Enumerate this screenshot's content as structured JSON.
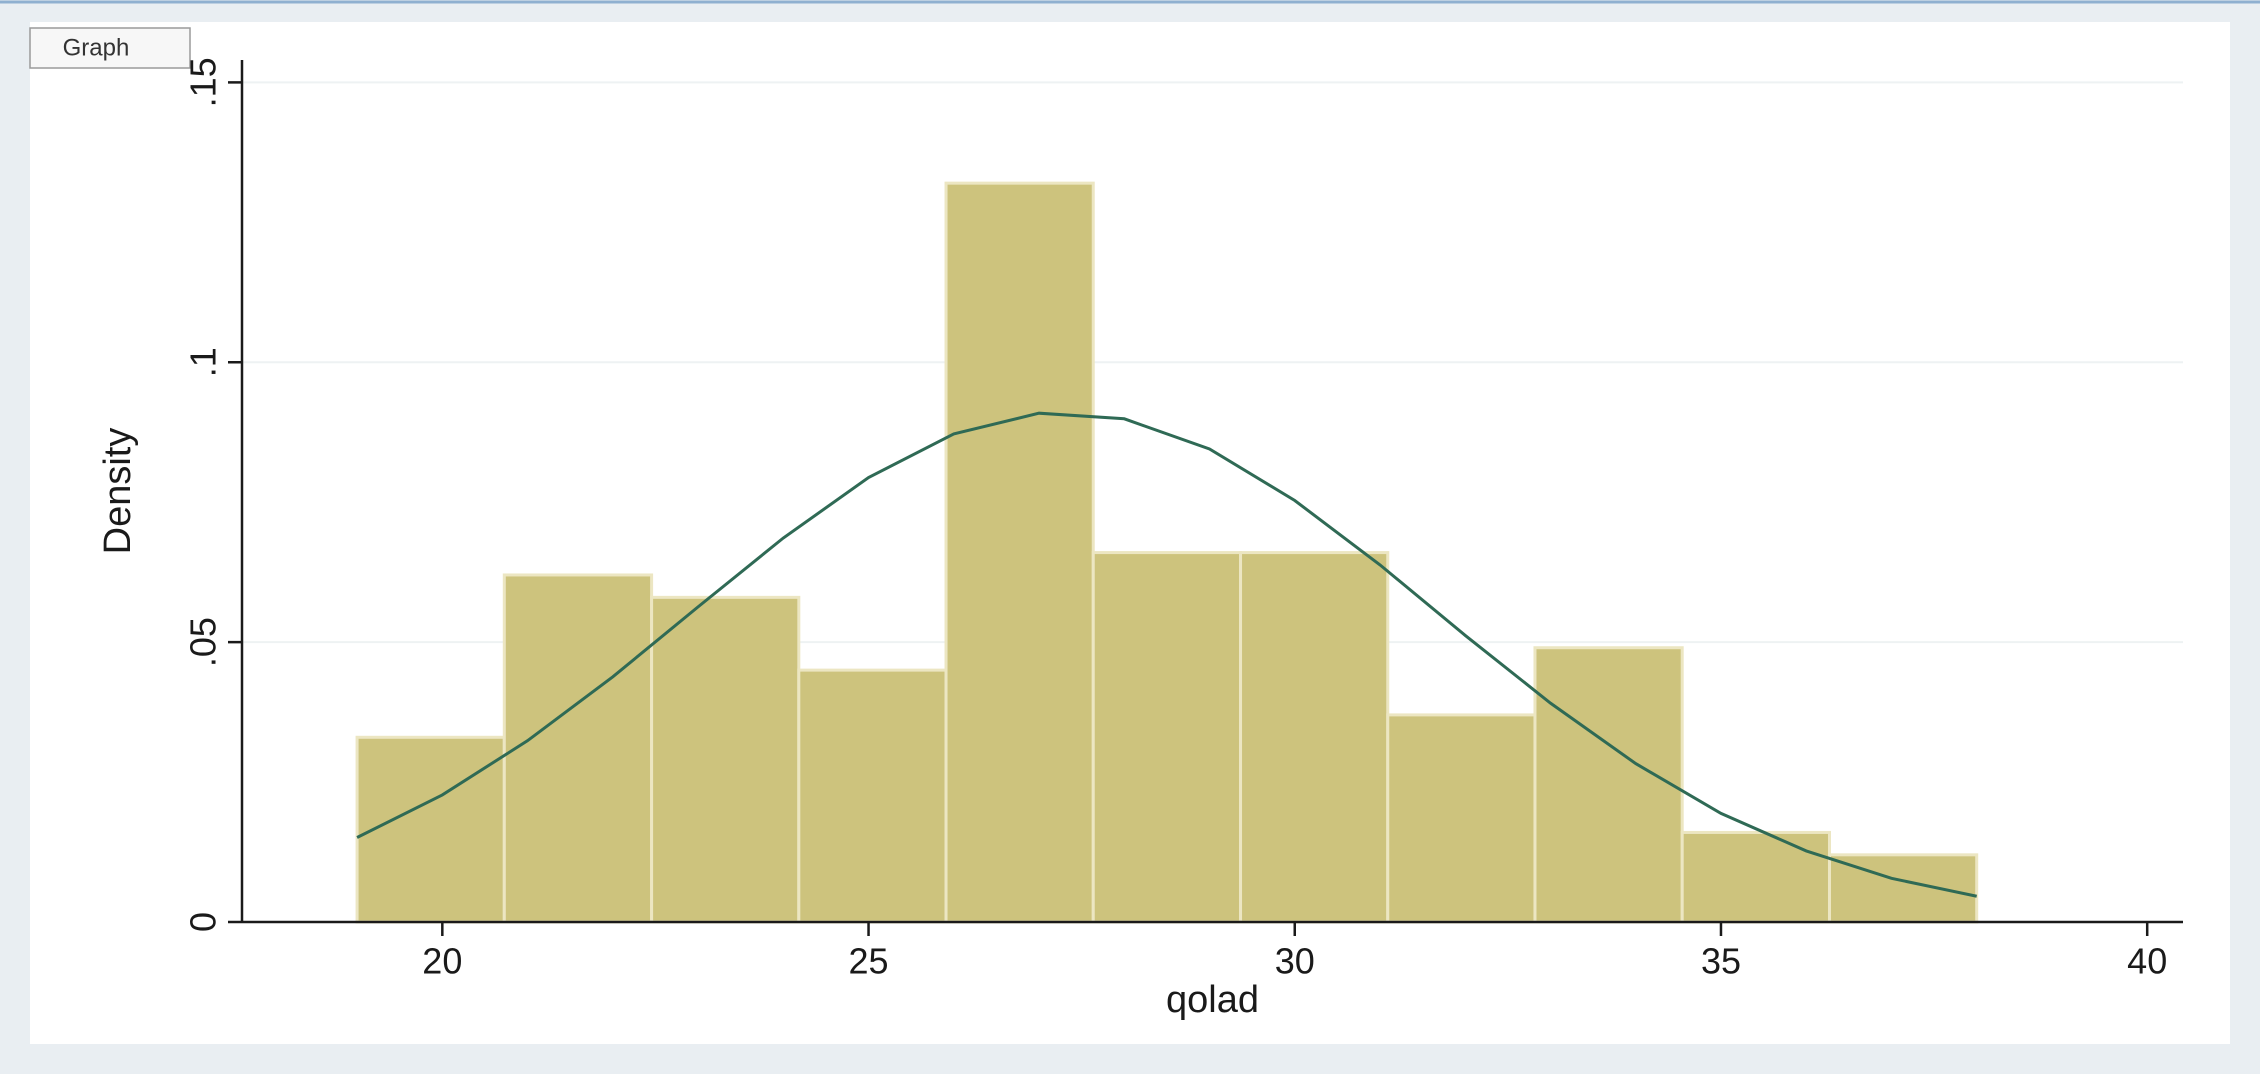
{
  "window": {
    "tab": "Graph"
  },
  "chart_data": {
    "type": "histogram",
    "x_label": "qolad",
    "y_label": "Density",
    "bins": [
      19,
      20.727,
      22.455,
      24.182,
      25.909,
      27.636,
      29.364,
      31.091,
      32.818,
      34.545,
      36.273,
      38
    ],
    "values": [
      0.033,
      0.062,
      0.058,
      0.045,
      0.132,
      0.066,
      0.066,
      0.037,
      0.049,
      0.016,
      0.012
    ],
    "color": "#cdc37d",
    "overlay": {
      "type": "line",
      "color": "#2f6a55",
      "x": [
        19,
        20,
        21,
        22,
        23,
        24,
        25,
        26,
        27,
        28,
        29,
        30,
        31,
        32,
        33,
        34,
        35,
        36,
        37,
        38
      ],
      "values": [
        0.0151,
        0.0227,
        0.0324,
        0.0438,
        0.0563,
        0.0686,
        0.0794,
        0.0872,
        0.0909,
        0.0899,
        0.0845,
        0.0753,
        0.0638,
        0.0512,
        0.0391,
        0.0283,
        0.0194,
        0.0127,
        0.0078,
        0.0046
      ]
    },
    "xlim": [
      17.65,
      40.42
    ],
    "ylim": [
      0,
      0.154
    ],
    "xticks": [
      20,
      25,
      30,
      35,
      40
    ],
    "yticks": [
      0,
      {
        "value": 0.05,
        "label": ".05"
      },
      {
        "value": 0.1,
        "label": ".1"
      },
      {
        "value": 0.15,
        "label": ".15"
      }
    ],
    "grid": true
  }
}
